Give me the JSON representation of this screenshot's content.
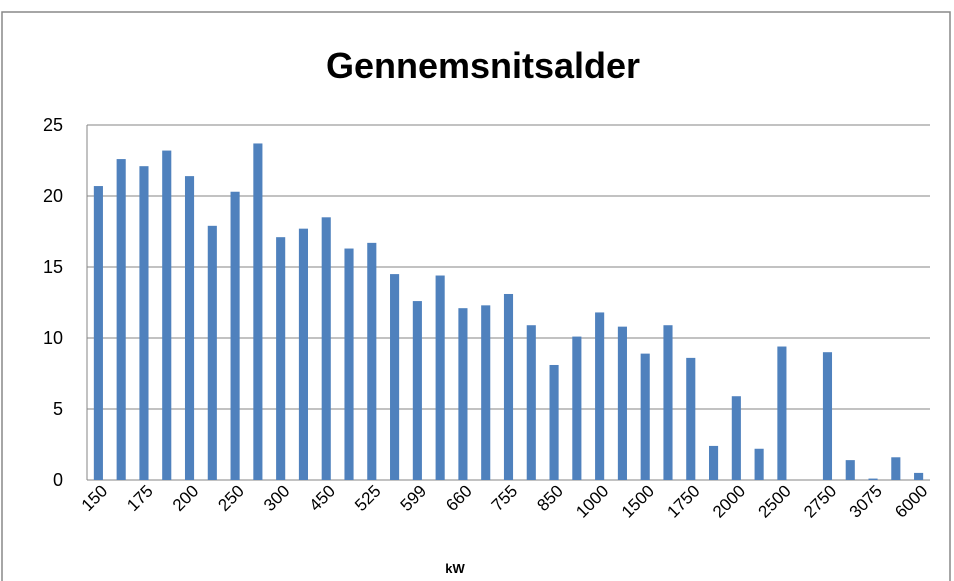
{
  "chart_data": {
    "type": "bar",
    "title": "Gennemsnitsalder",
    "x_label": "kW",
    "categories": [
      "150",
      null,
      "175",
      null,
      "200",
      null,
      "250",
      null,
      "300",
      null,
      "450",
      null,
      "525",
      null,
      "599",
      null,
      "660",
      null,
      "755",
      null,
      "850",
      null,
      "1000",
      null,
      "1500",
      null,
      "1750",
      null,
      "2000",
      null,
      "2500",
      null,
      "2750",
      null,
      "3075",
      null,
      "6000"
    ],
    "values": [
      20.7,
      22.6,
      22.1,
      23.2,
      21.4,
      17.9,
      20.3,
      23.7,
      17.1,
      17.7,
      18.5,
      16.3,
      16.7,
      14.5,
      12.6,
      14.4,
      12.1,
      12.3,
      13.1,
      10.9,
      8.1,
      10.1,
      11.8,
      10.8,
      8.9,
      10.9,
      8.6,
      2.4,
      5.9,
      2.2,
      9.4,
      0,
      9.0,
      1.4,
      0.1,
      1.6,
      0.5
    ],
    "color": "#4f81bd",
    "ylim": [
      0,
      25
    ],
    "yticks": [
      0,
      5,
      10,
      15,
      20,
      25
    ],
    "grid": true
  }
}
